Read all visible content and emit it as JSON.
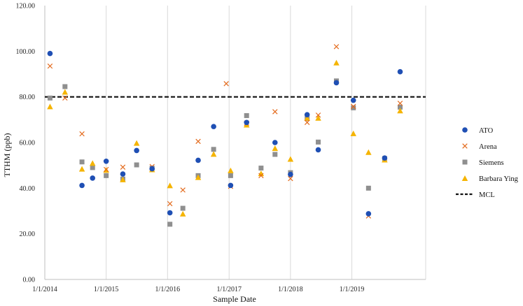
{
  "chart_data": {
    "type": "scatter",
    "title": "",
    "xlabel": "Sample Date",
    "ylabel": "TTHM (ppb)",
    "x_type": "date",
    "xlim": [
      "2014-01-01",
      "2020-03-15"
    ],
    "ylim": [
      0,
      120
    ],
    "y_ticks": [
      "0.00",
      "20.00",
      "40.00",
      "60.00",
      "80.00",
      "100.00",
      "120.00"
    ],
    "x_ticks": [
      {
        "value": "2014-01-01",
        "label": "1/1/2014"
      },
      {
        "value": "2015-01-01",
        "label": "1/1/2015"
      },
      {
        "value": "2016-01-01",
        "label": "1/1/2016"
      },
      {
        "value": "2017-01-01",
        "label": "1/1/2017"
      },
      {
        "value": "2018-01-01",
        "label": "1/1/2018"
      },
      {
        "value": "2019-01-01",
        "label": "1/1/2019"
      }
    ],
    "grid": "vertical",
    "legend_position": "right",
    "series": [
      {
        "name": "ATO",
        "marker": "circle",
        "color": "#1f4fb4",
        "points": [
          [
            "2014-02-01",
            99.0
          ],
          [
            "2014-08-10",
            41.2
          ],
          [
            "2014-10-12",
            44.4
          ],
          [
            "2015-01-01",
            51.8
          ],
          [
            "2015-04-10",
            46.2
          ],
          [
            "2015-07-01",
            56.5
          ],
          [
            "2015-10-01",
            48.5
          ],
          [
            "2016-01-15",
            29.2
          ],
          [
            "2016-07-01",
            52.2
          ],
          [
            "2016-10-01",
            67.0
          ],
          [
            "2017-01-10",
            41.2
          ],
          [
            "2017-04-15",
            68.8
          ],
          [
            "2017-10-01",
            60.0
          ],
          [
            "2018-01-01",
            46.0
          ],
          [
            "2018-04-10",
            72.2
          ],
          [
            "2018-06-15",
            56.8
          ],
          [
            "2018-10-01",
            86.2
          ],
          [
            "2019-01-10",
            78.5
          ],
          [
            "2019-04-10",
            28.8
          ],
          [
            "2019-07-15",
            53.2
          ],
          [
            "2019-10-15",
            91.0
          ]
        ]
      },
      {
        "name": "Arena",
        "marker": "x",
        "color": "#e36a1c",
        "points": [
          [
            "2014-02-01",
            93.5
          ],
          [
            "2014-05-01",
            79.5
          ],
          [
            "2014-08-10",
            63.8
          ],
          [
            "2015-01-01",
            48.2
          ],
          [
            "2015-04-10",
            49.2
          ],
          [
            "2015-10-01",
            49.5
          ],
          [
            "2016-01-15",
            33.2
          ],
          [
            "2016-04-01",
            39.2
          ],
          [
            "2016-07-01",
            60.5
          ],
          [
            "2016-12-15",
            85.8
          ],
          [
            "2017-01-10",
            40.8
          ],
          [
            "2017-04-15",
            68.5
          ],
          [
            "2017-07-10",
            45.5
          ],
          [
            "2017-10-01",
            73.5
          ],
          [
            "2018-01-01",
            44.2
          ],
          [
            "2018-04-10",
            68.8
          ],
          [
            "2018-06-15",
            72.0
          ],
          [
            "2018-10-01",
            102.0
          ],
          [
            "2019-01-10",
            75.8
          ],
          [
            "2019-04-10",
            27.8
          ],
          [
            "2019-10-15",
            77.2
          ]
        ]
      },
      {
        "name": "Siemens",
        "marker": "square",
        "color": "#8f8f8f",
        "points": [
          [
            "2014-02-01",
            79.5
          ],
          [
            "2014-05-01",
            84.5
          ],
          [
            "2014-08-10",
            51.5
          ],
          [
            "2014-10-12",
            49.0
          ],
          [
            "2015-01-01",
            45.5
          ],
          [
            "2015-04-10",
            44.0
          ],
          [
            "2015-07-01",
            50.2
          ],
          [
            "2015-10-01",
            48.8
          ],
          [
            "2016-01-15",
            24.2
          ],
          [
            "2016-04-01",
            31.2
          ],
          [
            "2016-07-01",
            45.5
          ],
          [
            "2016-10-01",
            57.0
          ],
          [
            "2017-01-10",
            45.5
          ],
          [
            "2017-04-15",
            71.8
          ],
          [
            "2017-07-10",
            48.8
          ],
          [
            "2017-10-01",
            54.8
          ],
          [
            "2018-01-01",
            46.8
          ],
          [
            "2018-04-10",
            70.5
          ],
          [
            "2018-06-15",
            60.2
          ],
          [
            "2018-10-01",
            87.0
          ],
          [
            "2019-01-10",
            75.2
          ],
          [
            "2019-04-10",
            40.0
          ],
          [
            "2019-07-15",
            53.0
          ],
          [
            "2019-10-15",
            75.5
          ]
        ]
      },
      {
        "name": "Barbara Ying",
        "marker": "triangle",
        "color": "#f5b400",
        "points": [
          [
            "2014-02-01",
            75.8
          ],
          [
            "2014-05-01",
            82.2
          ],
          [
            "2014-08-10",
            48.5
          ],
          [
            "2014-10-12",
            51.0
          ],
          [
            "2015-01-01",
            48.0
          ],
          [
            "2015-04-10",
            43.8
          ],
          [
            "2015-07-01",
            59.8
          ],
          [
            "2015-10-01",
            48.2
          ],
          [
            "2016-01-15",
            41.2
          ],
          [
            "2016-04-01",
            28.8
          ],
          [
            "2016-07-01",
            44.8
          ],
          [
            "2016-10-01",
            55.0
          ],
          [
            "2017-01-10",
            47.8
          ],
          [
            "2017-04-15",
            67.8
          ],
          [
            "2017-07-10",
            46.5
          ],
          [
            "2017-10-01",
            57.5
          ],
          [
            "2018-01-01",
            52.8
          ],
          [
            "2018-04-10",
            70.8
          ],
          [
            "2018-06-15",
            70.8
          ],
          [
            "2018-10-01",
            95.0
          ],
          [
            "2019-01-10",
            64.0
          ],
          [
            "2019-04-10",
            55.8
          ],
          [
            "2019-07-15",
            52.5
          ],
          [
            "2019-10-15",
            74.0
          ]
        ]
      }
    ],
    "reference_lines": [
      {
        "name": "MCL",
        "y": 80,
        "style": "dashed",
        "color": "#111111"
      }
    ]
  }
}
